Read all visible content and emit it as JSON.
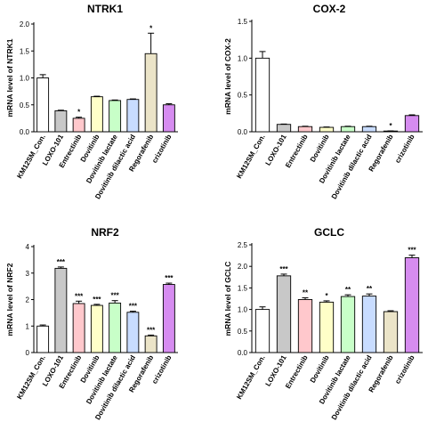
{
  "chart_data": [
    {
      "type": "bar",
      "title": "NTRK1",
      "ylabel": "mRNA level of NTRK1",
      "ylim": [
        0,
        2.0
      ],
      "yticks": [
        0.0,
        0.5,
        1.0,
        1.5,
        2.0
      ],
      "ytick_labels": [
        "0.0",
        "0.5",
        "1.0",
        "1.5",
        "2.0"
      ],
      "categories": [
        "KM12SM_Con.",
        "LOXO-101",
        "Entrectinib",
        "Dovitinib",
        "Dovitinib lactate",
        "Dovitinib dilactic acid",
        "Regorafenib",
        "crizotinib"
      ],
      "values": [
        1.0,
        0.39,
        0.25,
        0.65,
        0.58,
        0.6,
        1.45,
        0.5
      ],
      "errors": [
        0.06,
        0.01,
        0.02,
        0.01,
        0.01,
        0.01,
        0.38,
        0.02
      ],
      "significance": [
        "",
        "",
        "*",
        "",
        "",
        "",
        "*",
        ""
      ]
    },
    {
      "type": "bar",
      "title": "COX-2",
      "ylabel": "mRNA level of COX-2",
      "ylim": [
        0,
        1.5
      ],
      "yticks": [
        0.0,
        0.5,
        1.0,
        1.5
      ],
      "ytick_labels": [
        "0.0",
        "0.5",
        "1.0",
        "1.5"
      ],
      "categories": [
        "KM12SM_Con.",
        "LOXO-101",
        "Entrectinib",
        "Dovitinib",
        "Dovitinib lactate",
        "Dovitinib dilactic acid",
        "Regorafenib",
        "crizotinib"
      ],
      "values": [
        1.0,
        0.1,
        0.07,
        0.06,
        0.07,
        0.07,
        0.01,
        0.22
      ],
      "errors": [
        0.09,
        0.005,
        0.005,
        0.005,
        0.005,
        0.005,
        0.002,
        0.01
      ],
      "significance": [
        "",
        "",
        "",
        "",
        "",
        "",
        "*",
        ""
      ]
    },
    {
      "type": "bar",
      "title": "NRF2",
      "ylabel": "mRNA level of NRF2",
      "ylim": [
        0,
        4
      ],
      "yticks": [
        0,
        1,
        2,
        3,
        4
      ],
      "ytick_labels": [
        "0",
        "1",
        "2",
        "3",
        "4"
      ],
      "categories": [
        "KM12SM_Con.",
        "LOXO-101",
        "Entrectinib",
        "Dovitinib",
        "Dovitinib lactate",
        "Dovitinib dilactic acid",
        "Regorafenib",
        "crizotinib"
      ],
      "values": [
        1.0,
        3.18,
        1.85,
        1.78,
        1.87,
        1.52,
        0.63,
        2.57
      ],
      "errors": [
        0.04,
        0.05,
        0.09,
        0.04,
        0.09,
        0.04,
        0.03,
        0.05
      ],
      "significance": [
        "",
        "***",
        "***",
        "***",
        "***",
        "***",
        "***",
        "***"
      ]
    },
    {
      "type": "bar",
      "title": "GCLC",
      "ylabel": "mRNA level of GCLC",
      "ylim": [
        0,
        2.5
      ],
      "yticks": [
        0.0,
        0.5,
        1.0,
        1.5,
        2.0,
        2.5
      ],
      "ytick_labels": [
        "0.0",
        "0.5",
        "1.0",
        "1.5",
        "2.0",
        "2.5"
      ],
      "categories": [
        "KM12SM_Con.",
        "LOXO-101",
        "Entrectinib",
        "Dovitinib",
        "Dovitinib lactate",
        "Dovitinib dilactic acid",
        "Regorafenib",
        "crizotinib"
      ],
      "values": [
        1.0,
        1.78,
        1.23,
        1.17,
        1.3,
        1.31,
        0.95,
        2.2
      ],
      "errors": [
        0.06,
        0.04,
        0.04,
        0.03,
        0.04,
        0.05,
        0.02,
        0.06
      ],
      "significance": [
        "",
        "***",
        "**",
        "*",
        "**",
        "**",
        "",
        "***"
      ]
    }
  ],
  "colors": {
    "series_by_category": [
      "#ffffff",
      "#c8c8c8",
      "#ffc8cc",
      "#ffffc8",
      "#c8ffc8",
      "#c8dcff",
      "#ebe4c8",
      "#d68cf0"
    ]
  }
}
